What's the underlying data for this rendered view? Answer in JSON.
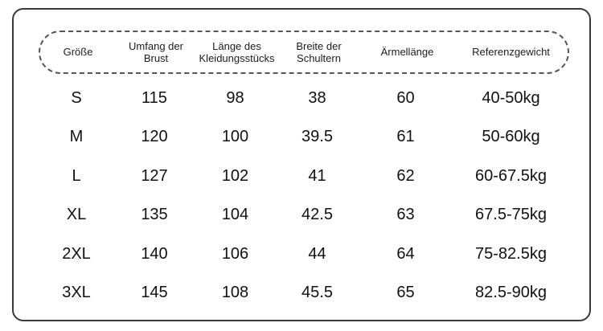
{
  "chart_data": {
    "type": "table",
    "title": "",
    "columns": [
      "Größe",
      "Umfang der Brust",
      "Länge des Kleidungsstücks",
      "Breite der Schultern",
      "Ärmellänge",
      "Referenzgewicht"
    ],
    "rows": [
      [
        "S",
        "115",
        "98",
        "38",
        "60",
        "40-50kg"
      ],
      [
        "M",
        "120",
        "100",
        "39.5",
        "61",
        "50-60kg"
      ],
      [
        "L",
        "127",
        "102",
        "41",
        "62",
        "60-67.5kg"
      ],
      [
        "XL",
        "135",
        "104",
        "42.5",
        "63",
        "67.5-75kg"
      ],
      [
        "2XL",
        "140",
        "106",
        "44",
        "64",
        "75-82.5kg"
      ],
      [
        "3XL",
        "145",
        "108",
        "45.5",
        "65",
        "82.5-90kg"
      ]
    ]
  },
  "style": {
    "frame_border_color": "#3a3a3a",
    "header_border_color": "#555555",
    "text_color": "#111111",
    "background_color": "#ffffff"
  }
}
